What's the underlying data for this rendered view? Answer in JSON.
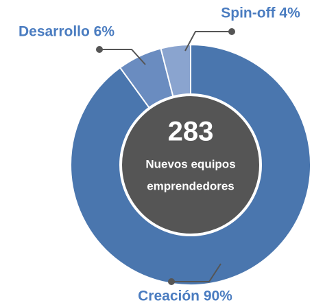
{
  "chart_data": {
    "type": "donut",
    "categories": [
      "Creación",
      "Desarrollo",
      "Spin-off"
    ],
    "values": [
      90,
      6,
      4
    ],
    "value_labels": [
      "Creación 90%",
      "Desarrollo 6%",
      "Spin-off 4%"
    ],
    "colors": [
      "#4a76ae",
      "#6a8cc0",
      "#8aa4cf"
    ],
    "center_value": 283,
    "center_label": [
      "Nuevos equipos",
      "emprendedores"
    ]
  }
}
